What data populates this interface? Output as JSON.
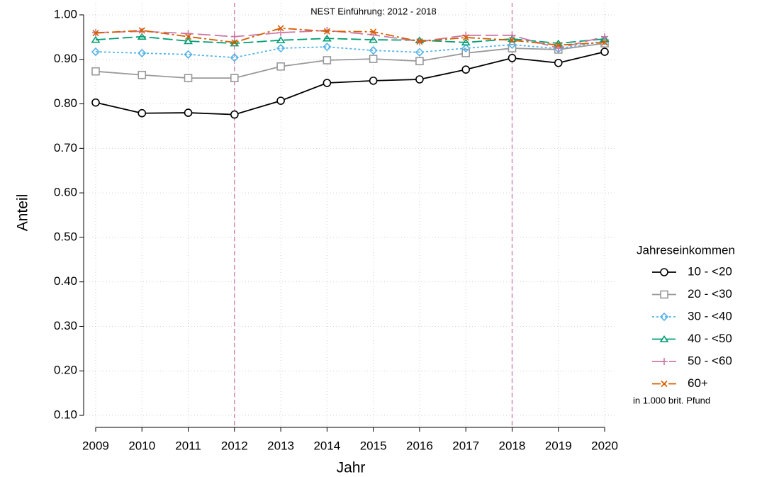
{
  "chart_data": {
    "type": "line",
    "annotation": "NEST Einführung: 2012 - 2018",
    "vlines": [
      2012,
      2018
    ],
    "x_label": "Jahr",
    "y_label": "Anteil",
    "x": [
      2009,
      2010,
      2011,
      2012,
      2013,
      2014,
      2015,
      2016,
      2017,
      2018,
      2019,
      2020
    ],
    "xlim": [
      2008.74,
      2020.26
    ],
    "xticks": [
      2009,
      2010,
      2011,
      2012,
      2013,
      2014,
      2015,
      2016,
      2017,
      2018,
      2019,
      2020
    ],
    "ylim": [
      0.073,
      1.027
    ],
    "yticks": [
      {
        "value": 0.1,
        "label": "0.10"
      },
      {
        "value": 0.2,
        "label": "0.20"
      },
      {
        "value": 0.3,
        "label": "0.30"
      },
      {
        "value": 0.4,
        "label": "0.40"
      },
      {
        "value": 0.5,
        "label": "0.50"
      },
      {
        "value": 0.6,
        "label": "0.60"
      },
      {
        "value": 0.7,
        "label": "0.70"
      },
      {
        "value": 0.8,
        "label": "0.80"
      },
      {
        "value": 0.9,
        "label": "0.90"
      },
      {
        "value": 1.0,
        "label": "1.00"
      }
    ],
    "grid": true,
    "legend_title": "Jahreseinkommen",
    "legend_note": "in 1.000 brit. Pfund",
    "legend_position": "right",
    "series": [
      {
        "name": "10 - <20",
        "color": "#000000",
        "linestyle": "solid",
        "marker": "circle",
        "values": [
          0.803,
          0.779,
          0.78,
          0.776,
          0.807,
          0.847,
          0.852,
          0.855,
          0.877,
          0.903,
          0.892,
          0.917
        ]
      },
      {
        "name": "20 - <30",
        "color": "#999999",
        "linestyle": "solid",
        "marker": "square",
        "values": [
          0.873,
          0.865,
          0.858,
          0.858,
          0.884,
          0.898,
          0.901,
          0.896,
          0.914,
          0.925,
          0.922,
          0.936
        ]
      },
      {
        "name": "30 - <40",
        "color": "#56b4e9",
        "linestyle": "dotted",
        "marker": "diamond",
        "values": [
          0.917,
          0.914,
          0.911,
          0.904,
          0.925,
          0.928,
          0.92,
          0.916,
          0.925,
          0.933,
          0.924,
          0.941
        ]
      },
      {
        "name": "40 - <50",
        "color": "#009e73",
        "linestyle": "dashed",
        "marker": "triangle",
        "values": [
          0.944,
          0.951,
          0.941,
          0.936,
          0.943,
          0.947,
          0.944,
          0.943,
          0.938,
          0.946,
          0.936,
          0.946
        ]
      },
      {
        "name": "50 - <60",
        "color": "#cc79a7",
        "linestyle": "longdash",
        "marker": "plus",
        "values": [
          0.96,
          0.963,
          0.958,
          0.951,
          0.96,
          0.965,
          0.955,
          0.94,
          0.954,
          0.954,
          0.925,
          0.951
        ]
      },
      {
        "name": "60+",
        "color": "#d55e00",
        "linestyle": "dashdot",
        "marker": "cross",
        "values": [
          0.959,
          0.965,
          0.951,
          0.938,
          0.97,
          0.963,
          0.962,
          0.94,
          0.949,
          0.943,
          0.932,
          0.938
        ]
      }
    ]
  }
}
